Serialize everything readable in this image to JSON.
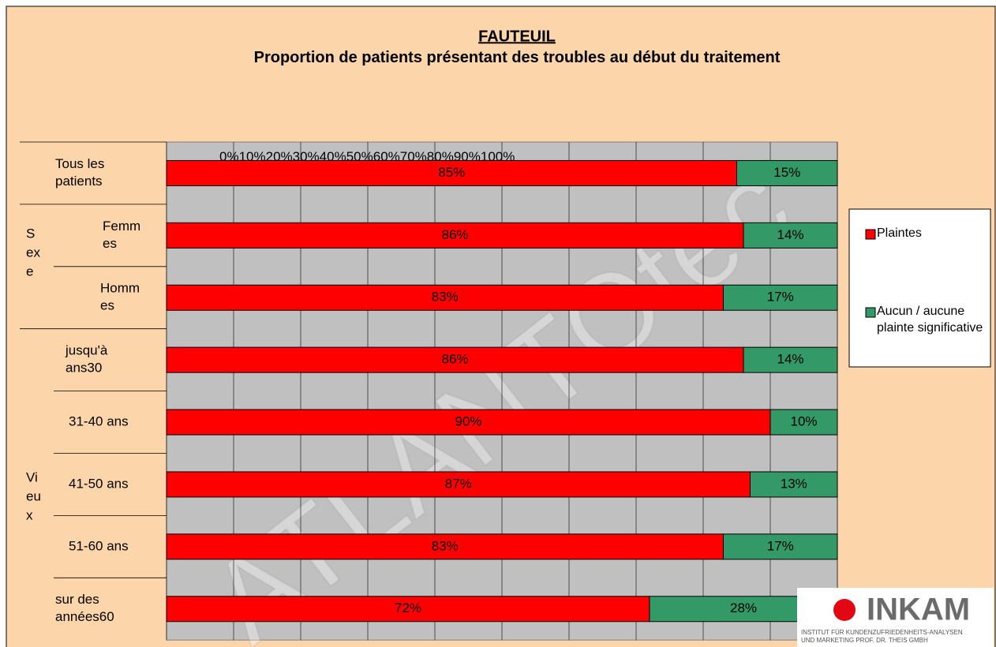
{
  "chart_data": {
    "type": "stacked-barh",
    "title": "FAUTEUIL",
    "subtitle": "Proportion de patients présentant des troubles au début du traitement",
    "categories": [
      [
        "Tous les",
        "patients"
      ],
      [
        "Femm",
        "es"
      ],
      [
        "Homm",
        "es"
      ],
      [
        "jusqu'à",
        "ans30"
      ],
      [
        "31-40 ans"
      ],
      [
        "41-50 ans"
      ],
      [
        "51-60 ans"
      ],
      [
        "sur des",
        "années60"
      ]
    ],
    "groups": [
      [
        "S",
        "ex",
        "e"
      ],
      [
        "Vi",
        "eu",
        "x"
      ]
    ],
    "series": [
      {
        "name": "Plaintes",
        "color": "#ff0000",
        "values": [
          85,
          86,
          83,
          86,
          90,
          87,
          83,
          72
        ],
        "value_labels": [
          "85%",
          "86%",
          "83%",
          "86%",
          "90%",
          "87%",
          "83%",
          "72%"
        ]
      },
      {
        "name": "Aucun / aucune plainte significative",
        "color": "#339966",
        "values": [
          15,
          14,
          17,
          14,
          10,
          13,
          17,
          28
        ],
        "value_labels": [
          "15%",
          "14%",
          "17%",
          "14%",
          "10%",
          "13%",
          "17%",
          "28%"
        ]
      }
    ],
    "xlim": [
      0,
      100
    ],
    "xticks": [
      {
        "value": 0,
        "label": "0%"
      },
      {
        "value": 10,
        "label": "10%"
      },
      {
        "value": 20,
        "label": "20%"
      },
      {
        "value": 30,
        "label": "30%"
      },
      {
        "value": 40,
        "label": "40%"
      },
      {
        "value": 50,
        "label": "50%"
      },
      {
        "value": 60,
        "label": "60%"
      },
      {
        "value": 70,
        "label": "70%"
      },
      {
        "value": 80,
        "label": "80%"
      },
      {
        "value": 90,
        "label": "90%"
      },
      {
        "value": 100,
        "label": "100%"
      }
    ],
    "grid": true,
    "watermark": "ATLANTOtec",
    "logo": {
      "name": "INKAM",
      "lines": [
        "INSTITUT FÜR KUNDENZUFRIEDENHEITS-ANALYSEN",
        "UND MARKETING PROF. DR. THEIS GMBH"
      ]
    }
  }
}
